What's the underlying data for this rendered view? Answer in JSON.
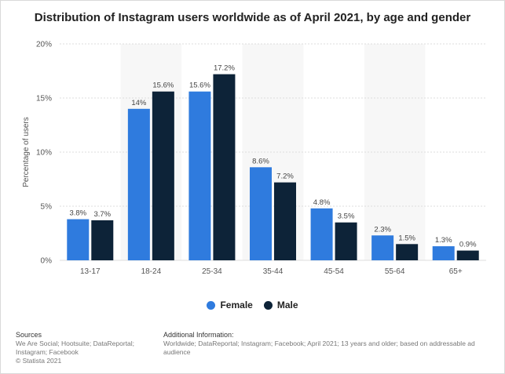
{
  "title": "Distribution of Instagram users worldwide as of April 2021, by age and gender",
  "colors": {
    "female": "#2f7bde",
    "male": "#0d2338",
    "band": "#f7f7f7",
    "grid": "#dddddd"
  },
  "legend": {
    "female": "Female",
    "male": "Male"
  },
  "footer": {
    "sources_heading": "Sources",
    "sources_text": "We Are Social; Hootsuite; DataReportal; Instagram; Facebook",
    "copyright": "© Statista 2021",
    "additional_heading": "Additional Information:",
    "additional_text": "Worldwide; DataReportal; Instagram; Facebook; April 2021; 13 years and older; based on addressable ad audience"
  },
  "chart_data": {
    "type": "bar",
    "title": "Distribution of Instagram users worldwide as of April 2021, by age and gender",
    "xlabel": "",
    "ylabel": "Percentage of users",
    "categories": [
      "13-17",
      "18-24",
      "25-34",
      "35-44",
      "45-54",
      "55-64",
      "65+"
    ],
    "series": [
      {
        "name": "Female",
        "values": [
          3.8,
          14,
          15.6,
          8.6,
          4.8,
          2.3,
          1.3
        ],
        "labels": [
          "3.8%",
          "14%",
          "15.6%",
          "8.6%",
          "4.8%",
          "2.3%",
          "1.3%"
        ]
      },
      {
        "name": "Male",
        "values": [
          3.7,
          15.6,
          17.2,
          7.2,
          3.5,
          1.5,
          0.9
        ],
        "labels": [
          "3.7%",
          "15.6%",
          "17.2%",
          "7.2%",
          "3.5%",
          "1.5%",
          "0.9%"
        ]
      }
    ],
    "ylim": [
      0,
      20
    ],
    "yticks": [
      0,
      5,
      10,
      15,
      20
    ],
    "ytick_labels": [
      "0%",
      "5%",
      "10%",
      "15%",
      "20%"
    ],
    "grid": true,
    "legend_position": "bottom-center"
  }
}
